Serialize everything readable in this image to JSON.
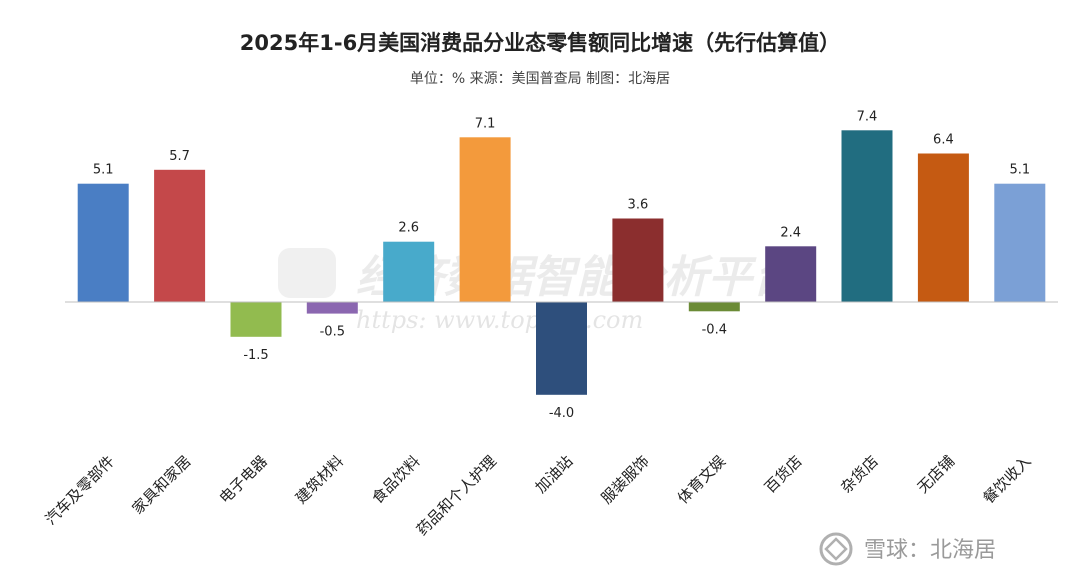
{
  "chart_data": {
    "type": "bar",
    "title": "2025年1-6月美国消费品分业态零售额同比增速（先行估算值）",
    "subtitle": "单位：% 来源：美国普查局 制图：北海居",
    "categories": [
      "汽车及零部件",
      "家具和家居",
      "电子电器",
      "建筑材料",
      "食品饮料",
      "药品和个人护理",
      "加油站",
      "服装服饰",
      "体育文娱",
      "百货店",
      "杂货店",
      "无店铺",
      "餐饮收入"
    ],
    "values": [
      5.1,
      5.7,
      -1.5,
      -0.5,
      2.6,
      7.1,
      -4.0,
      3.6,
      -0.4,
      2.4,
      7.4,
      6.4,
      5.1
    ],
    "value_labels": [
      "5.1",
      "5.7",
      "-1.5",
      "-0.5",
      "2.6",
      "7.1",
      "-4.0",
      "3.6",
      "-0.4",
      "2.4",
      "7.4",
      "6.4",
      "5.1"
    ],
    "colors": [
      "#4a7ec4",
      "#c4484a",
      "#92bb4f",
      "#8b67b0",
      "#48aacb",
      "#f39a3c",
      "#2e4f7c",
      "#8b2e2e",
      "#6b8b36",
      "#5b4682",
      "#216d80",
      "#c55a12",
      "#7ba0d6"
    ],
    "ylim": [
      -4.6,
      8.0
    ],
    "xlabel": "",
    "ylabel": "",
    "legend": "none",
    "grid": false
  },
  "watermark": {
    "text": "经济数据智能分析平台",
    "url": "https: www.topedb.com"
  },
  "footer": {
    "text": "雪球：北海居"
  }
}
